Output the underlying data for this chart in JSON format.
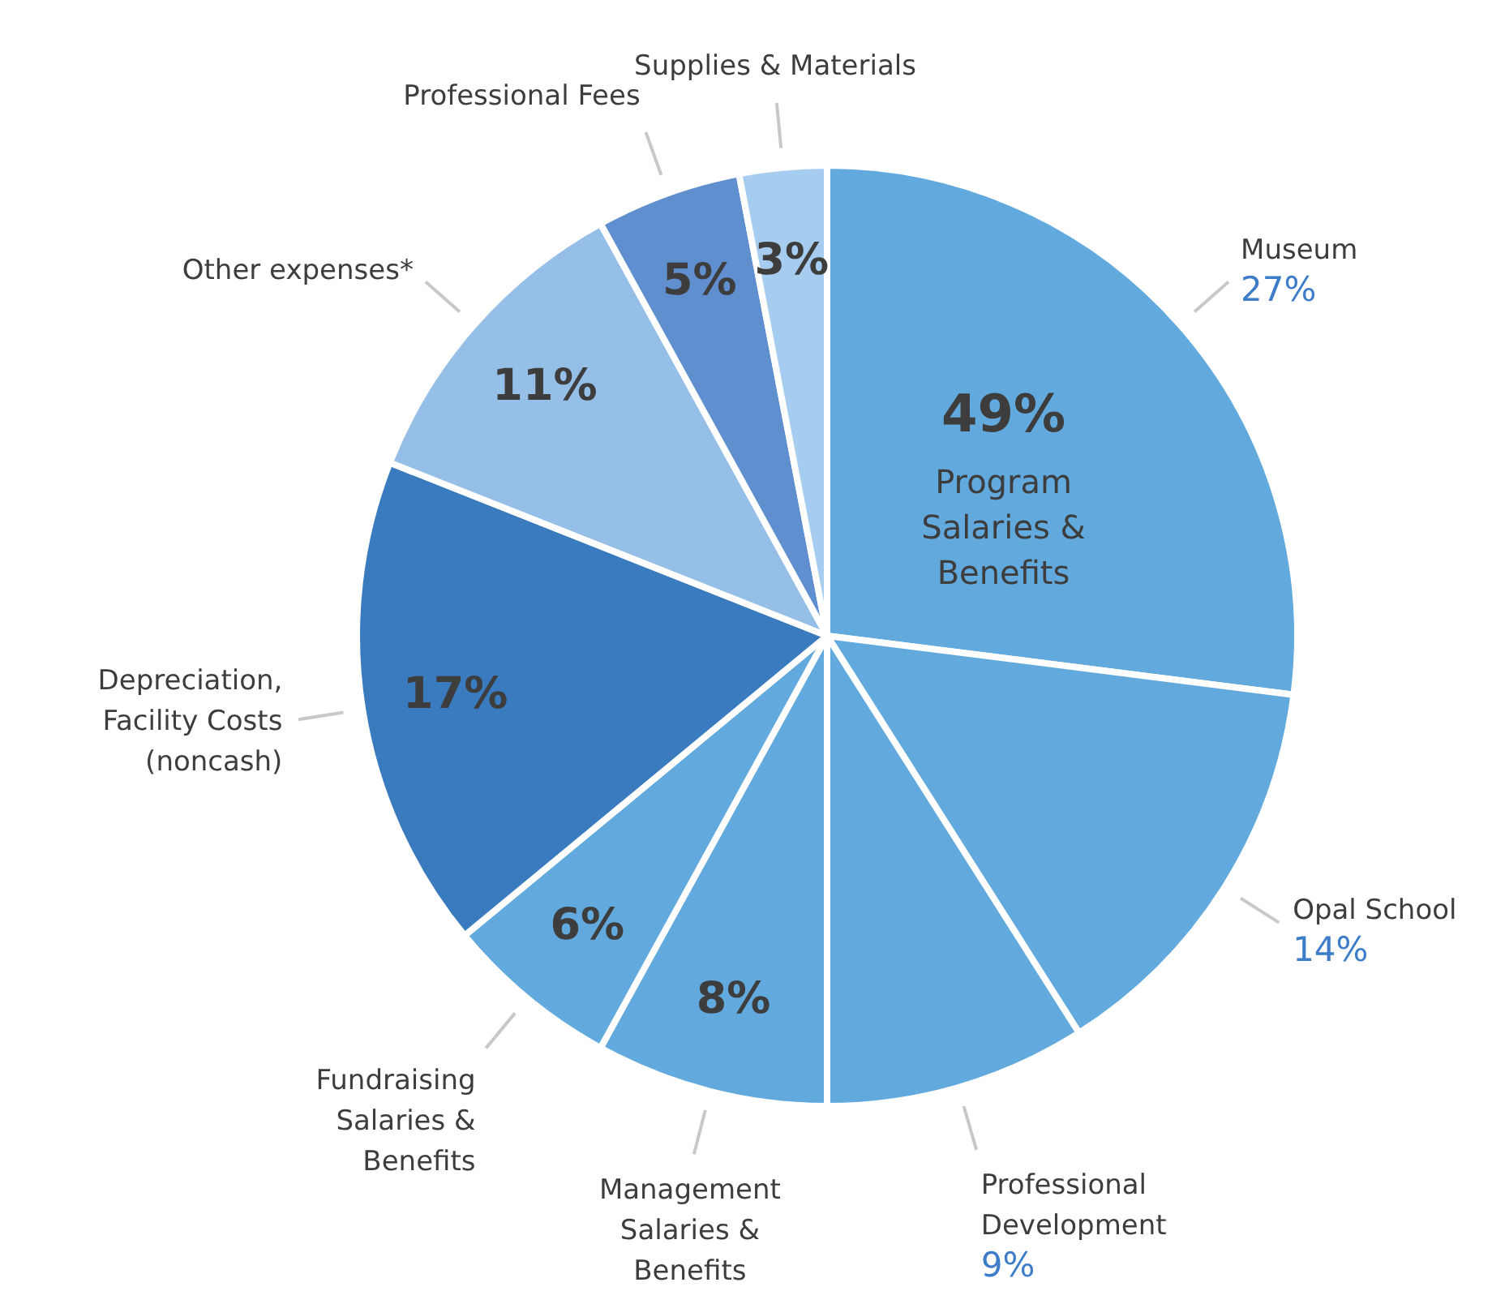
{
  "chart_data": {
    "type": "pie",
    "categories": [
      "Museum",
      "Opal School",
      "Professional Development",
      "Management Salaries & Benefits",
      "Fundraising Salaries & Benefits",
      "Depreciation, Facility Costs (noncash)",
      "Other expenses*",
      "Professional Fees",
      "Supplies & Materials"
    ],
    "values": [
      27,
      14,
      9,
      8,
      6,
      17,
      11,
      5,
      3
    ],
    "colors": [
      "#62a9dd",
      "#62a9dd",
      "#62a9dd",
      "#62a9dd",
      "#62a9dd",
      "#3a7bbf",
      "#95bfe7",
      "#5f8fcf",
      "#a6cdef"
    ],
    "value_labels": [
      "27%",
      "14%",
      "9%",
      "8%",
      "6%",
      "17%",
      "11%",
      "5%",
      "3%"
    ],
    "annotations": [
      "49%",
      "Program Salaries & Benefits"
    ]
  }
}
